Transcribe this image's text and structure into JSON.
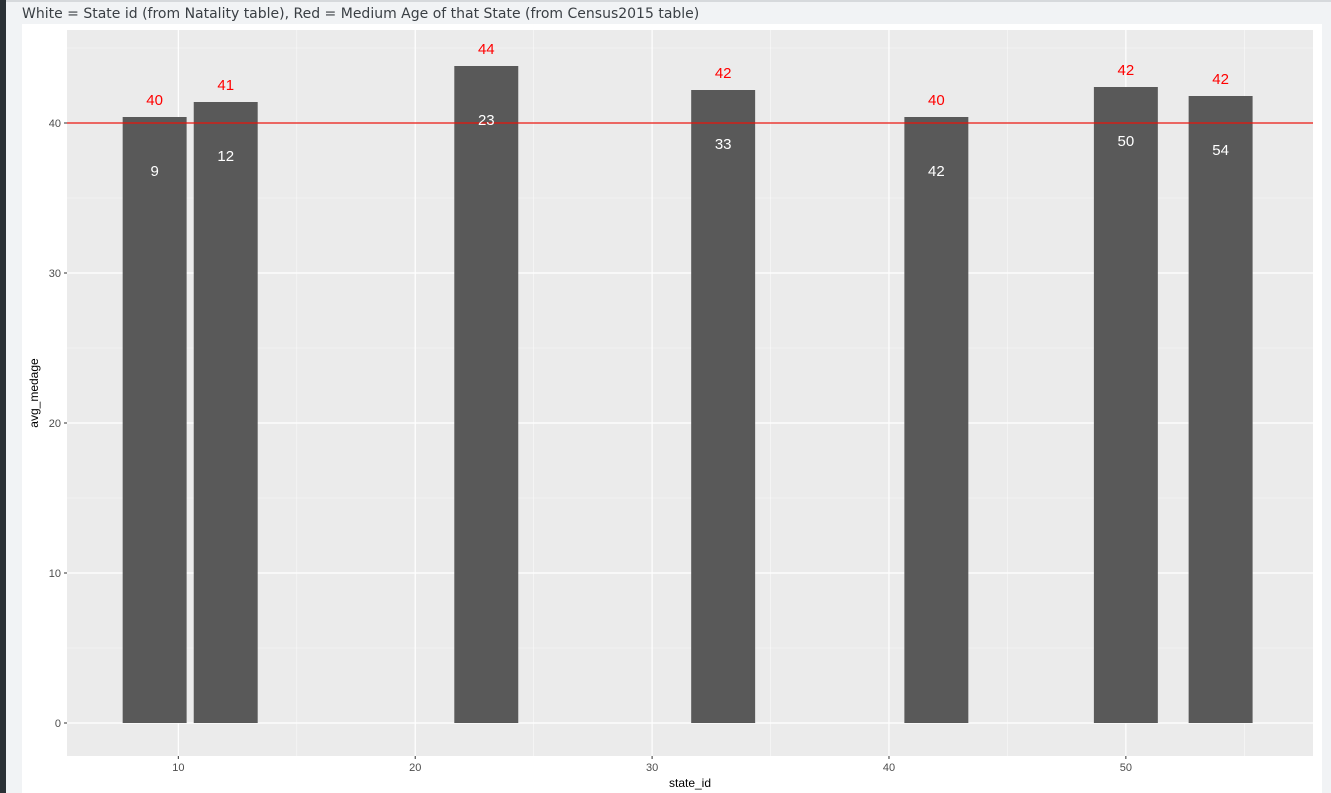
{
  "caption": "White = State id (from Natality table), Red = Medium Age of that State (from Census2015 table)",
  "colors": {
    "panel_bg": "#ebebeb",
    "grid_major": "#ffffff",
    "bar_fill": "#595959",
    "reference_line": "#e8140c",
    "red_label": "#ff0000",
    "white_label": "#ffffff"
  },
  "chart_data": {
    "type": "bar",
    "title": "",
    "xlabel": "state_id",
    "ylabel": "avg_medage",
    "xlim": [
      5.3,
      57.9
    ],
    "ylim": [
      -2.2,
      46.2
    ],
    "x_ticks": [
      10,
      20,
      30,
      40,
      50
    ],
    "y_ticks": [
      0,
      10,
      20,
      30,
      40
    ],
    "bar_width": 2.7,
    "hline": 40,
    "grid": true,
    "bars": [
      {
        "x": 9,
        "value": 40.4,
        "red_label": "40",
        "white_label": "9"
      },
      {
        "x": 12,
        "value": 41.4,
        "red_label": "41",
        "white_label": "12"
      },
      {
        "x": 23,
        "value": 43.8,
        "red_label": "44",
        "white_label": "23"
      },
      {
        "x": 33,
        "value": 42.2,
        "red_label": "42",
        "white_label": "33"
      },
      {
        "x": 42,
        "value": 40.4,
        "red_label": "40",
        "white_label": "42"
      },
      {
        "x": 50,
        "value": 42.4,
        "red_label": "42",
        "white_label": "50"
      },
      {
        "x": 54,
        "value": 41.8,
        "red_label": "42",
        "white_label": "54"
      }
    ]
  }
}
